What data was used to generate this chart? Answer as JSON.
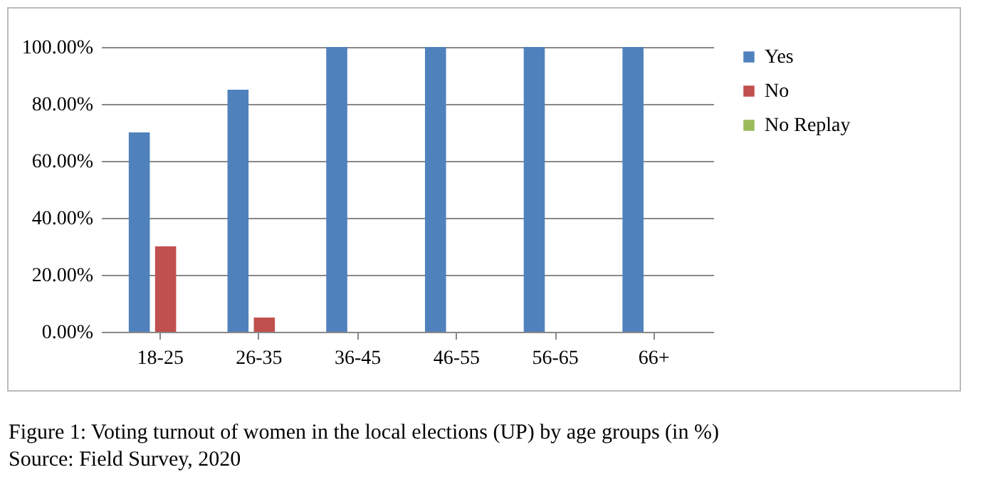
{
  "chart_data": {
    "type": "bar",
    "title": "Figure 1: Voting turnout of women in the local elections (UP) by age groups (in %)",
    "annotations": [
      "Source: Field Survey, 2020"
    ],
    "categories": [
      "18-25",
      "26-35",
      "36-45",
      "46-55",
      "56-65",
      "66+"
    ],
    "series": [
      {
        "name": "Yes",
        "color": "#4f81bd",
        "values": [
          70,
          85,
          100,
          100,
          100,
          100
        ]
      },
      {
        "name": "No",
        "color": "#c0504d",
        "values": [
          30,
          5,
          0,
          0,
          0,
          0
        ]
      },
      {
        "name": "No Replay",
        "color": "#9bbb59",
        "values": [
          0,
          0,
          0,
          0,
          0,
          0
        ]
      }
    ],
    "ylim": [
      0,
      100
    ],
    "yticks": [
      {
        "value": 0,
        "label": "0.00%"
      },
      {
        "value": 20,
        "label": "20.00%"
      },
      {
        "value": 40,
        "label": "40.00%"
      },
      {
        "value": 60,
        "label": "60.00%"
      },
      {
        "value": 80,
        "label": "80.00%"
      },
      {
        "value": 100,
        "label": "100.00%"
      }
    ],
    "grid": "y",
    "legend": "right"
  }
}
